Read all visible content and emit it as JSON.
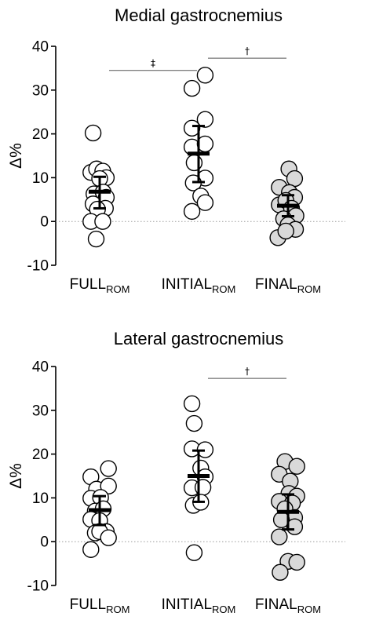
{
  "chart_data": [
    {
      "type": "scatter",
      "title": "Medial gastrocnemius",
      "ylabel": "Δ%",
      "ylim": [
        -10,
        40
      ],
      "yticks": [
        "-10",
        "0",
        "10",
        "20",
        "30",
        "40"
      ],
      "categories": [
        {
          "main": "FULL",
          "sub": "ROM"
        },
        {
          "main": "INITIAL",
          "sub": "ROM"
        },
        {
          "main": "FINAL",
          "sub": "ROM"
        }
      ],
      "reference_line": 0,
      "series": [
        {
          "fill": "#ffffff",
          "mean": 6.8,
          "sd_low": 3.0,
          "sd_high": 10.2,
          "points": [
            [
              -0.15,
              20.2
            ],
            [
              -0.2,
              11.2
            ],
            [
              -0.07,
              12.0
            ],
            [
              0.07,
              11.5
            ],
            [
              0.15,
              10.0
            ],
            [
              0.0,
              9.8
            ],
            [
              -0.13,
              6.3
            ],
            [
              0.08,
              6.7
            ],
            [
              0.15,
              5.5
            ],
            [
              -0.15,
              4.0
            ],
            [
              0.13,
              3.0
            ],
            [
              -0.05,
              2.8
            ],
            [
              -0.2,
              0.0
            ],
            [
              0.07,
              0.0
            ],
            [
              -0.08,
              -4.0
            ]
          ]
        },
        {
          "fill": "#ffffff",
          "mean": 15.5,
          "sd_low": 9.0,
          "sd_high": 21.8,
          "points": [
            [
              -0.15,
              30.4
            ],
            [
              0.15,
              33.4
            ],
            [
              -0.15,
              21.3
            ],
            [
              0.15,
              23.3
            ],
            [
              -0.15,
              17.0
            ],
            [
              0.15,
              17.7
            ],
            [
              -0.1,
              13.4
            ],
            [
              0.15,
              9.9
            ],
            [
              -0.12,
              8.8
            ],
            [
              0.05,
              5.8
            ],
            [
              -0.15,
              2.3
            ],
            [
              0.15,
              4.3
            ]
          ]
        },
        {
          "fill": "#d9d9d9",
          "mean": 3.6,
          "sd_low": 1.2,
          "sd_high": 6.0,
          "points": [
            [
              0.02,
              12.0
            ],
            [
              0.15,
              9.8
            ],
            [
              -0.2,
              7.8
            ],
            [
              0.03,
              6.6
            ],
            [
              0.15,
              5.5
            ],
            [
              -0.2,
              3.8
            ],
            [
              -0.05,
              4.8
            ],
            [
              0.08,
              3.0
            ],
            [
              0.18,
              1.3
            ],
            [
              -0.1,
              0.6
            ],
            [
              0.0,
              -0.8
            ],
            [
              0.17,
              -1.8
            ],
            [
              -0.23,
              -3.7
            ],
            [
              -0.05,
              -2.2
            ]
          ]
        }
      ],
      "significance": [
        {
          "from": 0,
          "to": 1,
          "y": 34.5,
          "symbol": "‡"
        },
        {
          "from": 1,
          "to": 2,
          "y": 37.3,
          "symbol": "†"
        }
      ]
    },
    {
      "type": "scatter",
      "title": "Lateral gastrocnemius",
      "ylabel": "Δ%",
      "ylim": [
        -10,
        40
      ],
      "yticks": [
        "-10",
        "0",
        "10",
        "20",
        "30",
        "40"
      ],
      "categories": [
        {
          "main": "FULL",
          "sub": "ROM"
        },
        {
          "main": "INITIAL",
          "sub": "ROM"
        },
        {
          "main": "FINAL",
          "sub": "ROM"
        }
      ],
      "reference_line": 0,
      "series": [
        {
          "fill": "#ffffff",
          "mean": 7.2,
          "sd_low": 3.8,
          "sd_high": 10.4,
          "points": [
            [
              -0.2,
              14.8
            ],
            [
              0.2,
              16.7
            ],
            [
              -0.07,
              12.0
            ],
            [
              0.2,
              12.7
            ],
            [
              -0.2,
              9.9
            ],
            [
              0.02,
              10.1
            ],
            [
              -0.1,
              7.0
            ],
            [
              0.08,
              7.5
            ],
            [
              -0.2,
              5.1
            ],
            [
              0.0,
              4.8
            ],
            [
              0.15,
              2.3
            ],
            [
              -0.1,
              2.0
            ],
            [
              0.0,
              2.3
            ],
            [
              0.2,
              0.9
            ],
            [
              -0.2,
              -1.8
            ]
          ]
        },
        {
          "fill": "#ffffff",
          "mean": 15.0,
          "sd_low": 9.1,
          "sd_high": 20.8,
          "points": [
            [
              -0.15,
              31.5
            ],
            [
              -0.1,
              27.0
            ],
            [
              -0.15,
              21.2
            ],
            [
              0.15,
              21.0
            ],
            [
              0.05,
              16.8
            ],
            [
              0.15,
              14.8
            ],
            [
              -0.15,
              12.3
            ],
            [
              0.1,
              12.4
            ],
            [
              -0.12,
              8.3
            ],
            [
              0.05,
              9.0
            ],
            [
              -0.1,
              -2.5
            ]
          ]
        },
        {
          "fill": "#d9d9d9",
          "mean": 6.8,
          "sd_low": 2.8,
          "sd_high": 10.8,
          "points": [
            [
              -0.07,
              18.3
            ],
            [
              0.2,
              17.2
            ],
            [
              -0.2,
              15.4
            ],
            [
              0.05,
              13.8
            ],
            [
              0.02,
              11.0
            ],
            [
              0.2,
              10.4
            ],
            [
              -0.2,
              9.2
            ],
            [
              0.1,
              8.8
            ],
            [
              -0.07,
              7.5
            ],
            [
              0.15,
              5.5
            ],
            [
              -0.15,
              5.0
            ],
            [
              0.15,
              3.4
            ],
            [
              -0.2,
              1.1
            ],
            [
              0.0,
              -4.5
            ],
            [
              0.2,
              -4.7
            ],
            [
              -0.18,
              -7.0
            ]
          ]
        }
      ],
      "significance": [
        {
          "from": 1,
          "to": 2,
          "y": 37.3,
          "symbol": "†"
        }
      ]
    }
  ]
}
